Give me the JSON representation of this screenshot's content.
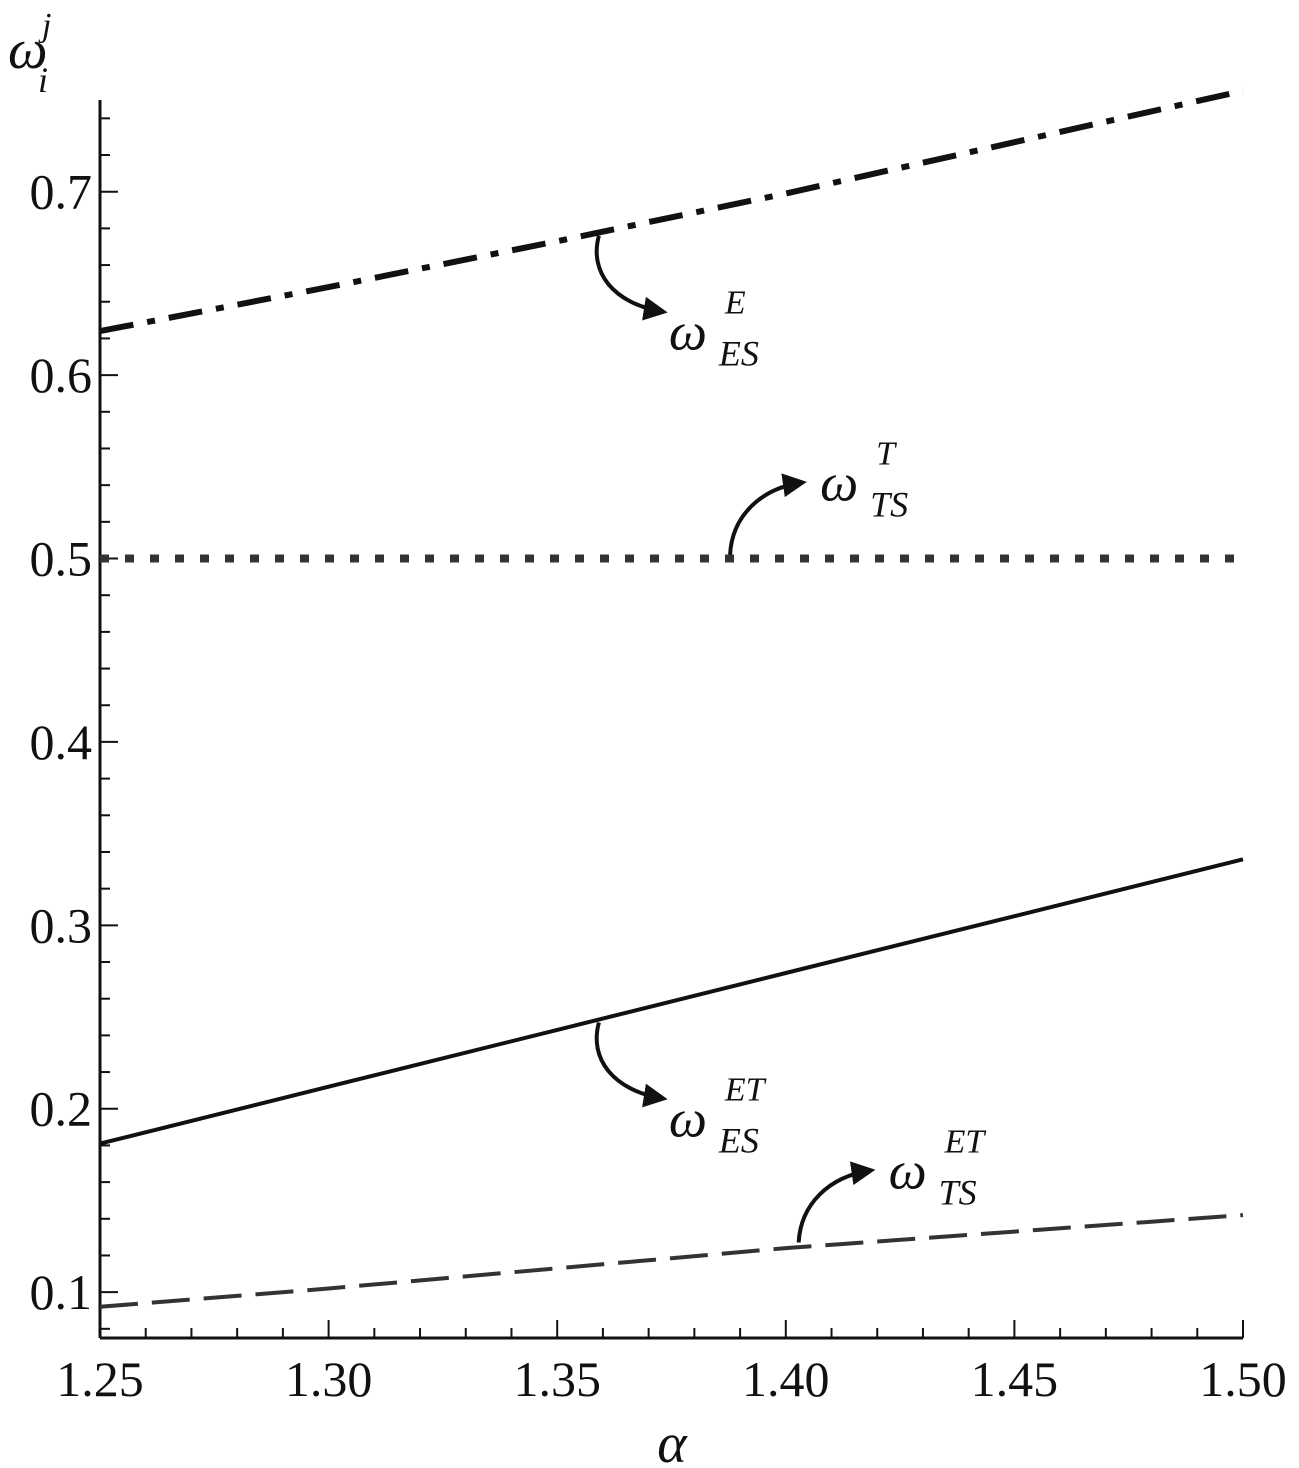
{
  "chart_data": {
    "type": "line",
    "xlabel": "α",
    "ylabel": {
      "base": "ω",
      "sub": "i",
      "sup": "j"
    },
    "xlim": [
      1.25,
      1.5
    ],
    "ylim": [
      0.075,
      0.75
    ],
    "x_ticks": [
      1.25,
      1.3,
      1.35,
      1.4,
      1.45,
      1.5
    ],
    "x_tick_labels": [
      "1.25",
      "1.30",
      "1.35",
      "1.40",
      "1.45",
      "1.50"
    ],
    "y_ticks": [
      0.1,
      0.2,
      0.3,
      0.4,
      0.5,
      0.6,
      0.7
    ],
    "y_tick_labels": [
      "0.1",
      "0.2",
      "0.3",
      "0.4",
      "0.5",
      "0.6",
      "0.7"
    ],
    "grid": false,
    "series": [
      {
        "key": "es_e",
        "style": "dash-dot",
        "color": "#111111",
        "x": [
          1.25,
          1.3,
          1.35,
          1.4,
          1.45,
          1.5
        ],
        "y": [
          0.624,
          0.648,
          0.673,
          0.699,
          0.727,
          0.755
        ],
        "annotation": {
          "base": "ω",
          "sub": "ES",
          "sup": "E",
          "arrow_at_x": 1.36
        }
      },
      {
        "key": "ts_t",
        "style": "dotted",
        "color": "#333333",
        "x": [
          1.25,
          1.5
        ],
        "y": [
          0.5,
          0.5
        ],
        "annotation": {
          "base": "ω",
          "sub": "TS",
          "sup": "T",
          "arrow_at_x": 1.39
        }
      },
      {
        "key": "es_et",
        "style": "solid",
        "color": "#111111",
        "x": [
          1.25,
          1.3,
          1.35,
          1.4,
          1.45,
          1.5
        ],
        "y": [
          0.181,
          0.212,
          0.243,
          0.274,
          0.305,
          0.336
        ],
        "annotation": {
          "base": "ω",
          "sub": "ES",
          "sup": "ET",
          "arrow_at_x": 1.36
        }
      },
      {
        "key": "ts_et",
        "style": "dashed",
        "color": "#333333",
        "x": [
          1.25,
          1.3,
          1.35,
          1.4,
          1.45,
          1.5
        ],
        "y": [
          0.092,
          0.102,
          0.113,
          0.124,
          0.133,
          0.142
        ],
        "annotation": {
          "base": "ω",
          "sub": "TS",
          "sup": "ET",
          "arrow_at_x": 1.405
        }
      }
    ]
  }
}
